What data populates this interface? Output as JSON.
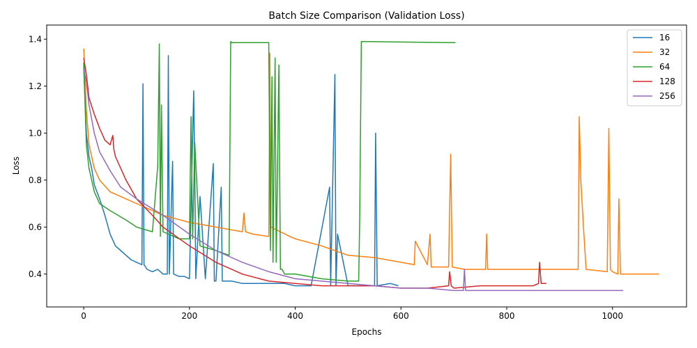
{
  "chart_data": {
    "type": "line",
    "title": "Batch Size Comparison (Validation Loss)",
    "xlabel": "Epochs",
    "ylabel": "Loss",
    "xlim": [
      -70,
      1140
    ],
    "ylim": [
      0.26,
      1.46
    ],
    "xticks": [
      0,
      200,
      400,
      600,
      800,
      1000
    ],
    "yticks": [
      0.4,
      0.6,
      0.8,
      1.0,
      1.2,
      1.4
    ],
    "xtick_labels": [
      "0",
      "200",
      "400",
      "600",
      "800",
      "1000"
    ],
    "ytick_labels": [
      "0.4",
      "0.6",
      "0.8",
      "1.0",
      "1.2",
      "1.4"
    ],
    "grid": false,
    "legend_position": "top-right",
    "series": [
      {
        "name": "16",
        "color": "#1f77b4",
        "x": [
          0,
          5,
          10,
          15,
          20,
          30,
          40,
          50,
          60,
          70,
          80,
          90,
          100,
          110,
          112,
          114,
          120,
          130,
          140,
          150,
          158,
          160,
          162,
          168,
          170,
          180,
          190,
          200,
          208,
          210,
          212,
          220,
          230,
          245,
          247,
          250,
          260,
          262,
          280,
          300,
          320,
          350,
          380,
          400,
          430,
          465,
          467,
          475,
          477,
          480,
          500,
          520,
          550,
          552,
          555,
          580,
          595
        ],
        "y": [
          1.28,
          1.0,
          0.9,
          0.85,
          0.78,
          0.72,
          0.65,
          0.57,
          0.52,
          0.5,
          0.48,
          0.46,
          0.45,
          0.44,
          1.21,
          0.44,
          0.42,
          0.41,
          0.42,
          0.4,
          0.4,
          1.33,
          0.4,
          0.88,
          0.4,
          0.39,
          0.39,
          0.38,
          1.18,
          0.84,
          0.38,
          0.73,
          0.38,
          0.87,
          0.37,
          0.37,
          0.77,
          0.37,
          0.37,
          0.36,
          0.36,
          0.36,
          0.36,
          0.35,
          0.35,
          0.77,
          0.35,
          1.25,
          0.35,
          0.57,
          0.35,
          0.35,
          0.35,
          1.0,
          0.35,
          0.36,
          0.35
        ]
      },
      {
        "name": "32",
        "color": "#ff7f0e",
        "x": [
          0,
          5,
          10,
          20,
          30,
          50,
          80,
          100,
          130,
          150,
          200,
          250,
          300,
          303,
          306,
          320,
          350,
          352,
          354,
          390,
          400,
          450,
          500,
          550,
          600,
          625,
          627,
          650,
          655,
          657,
          690,
          694,
          697,
          720,
          760,
          762,
          764,
          800,
          850,
          900,
          935,
          937,
          940,
          945,
          950,
          990,
          993,
          996,
          1000,
          1010,
          1012,
          1015,
          1050,
          1088
        ],
        "y": [
          1.36,
          1.1,
          0.95,
          0.85,
          0.8,
          0.75,
          0.72,
          0.7,
          0.67,
          0.65,
          0.62,
          0.6,
          0.58,
          0.66,
          0.58,
          0.57,
          0.56,
          1.34,
          0.6,
          0.56,
          0.55,
          0.52,
          0.48,
          0.47,
          0.45,
          0.44,
          0.54,
          0.44,
          0.57,
          0.43,
          0.43,
          0.91,
          0.43,
          0.42,
          0.42,
          0.57,
          0.42,
          0.42,
          0.42,
          0.42,
          0.42,
          1.07,
          0.8,
          0.6,
          0.42,
          0.41,
          1.02,
          0.42,
          0.41,
          0.4,
          0.72,
          0.4,
          0.4,
          0.4
        ]
      },
      {
        "name": "64",
        "color": "#2ca02c",
        "x": [
          0,
          5,
          10,
          20,
          30,
          50,
          80,
          100,
          130,
          140,
          143,
          145,
          147,
          150,
          180,
          200,
          203,
          206,
          210,
          220,
          250,
          275,
          278,
          280,
          350,
          353,
          356,
          358,
          362,
          364,
          366,
          369,
          372,
          375,
          380,
          400,
          450,
          500,
          520,
          522,
          525,
          700,
          703
        ],
        "y": [
          1.3,
          0.95,
          0.85,
          0.75,
          0.7,
          0.67,
          0.63,
          0.6,
          0.58,
          0.86,
          1.38,
          0.56,
          1.12,
          0.58,
          0.55,
          0.55,
          1.07,
          0.55,
          0.96,
          0.52,
          0.5,
          0.48,
          1.39,
          1.385,
          1.385,
          0.5,
          1.24,
          0.45,
          1.32,
          0.45,
          0.76,
          1.29,
          0.42,
          0.42,
          0.4,
          0.4,
          0.38,
          0.37,
          0.37,
          0.64,
          1.39,
          1.385,
          1.385
        ]
      },
      {
        "name": "128",
        "color": "#d62728",
        "x": [
          0,
          5,
          10,
          20,
          30,
          40,
          50,
          55,
          57,
          60,
          80,
          100,
          130,
          150,
          200,
          250,
          300,
          350,
          400,
          450,
          500,
          550,
          600,
          650,
          690,
          692,
          695,
          700,
          750,
          800,
          850,
          860,
          862,
          865,
          870,
          875
        ],
        "y": [
          1.32,
          1.25,
          1.15,
          1.08,
          1.02,
          0.97,
          0.95,
          0.99,
          0.93,
          0.9,
          0.8,
          0.72,
          0.65,
          0.6,
          0.52,
          0.45,
          0.4,
          0.37,
          0.36,
          0.35,
          0.35,
          0.35,
          0.34,
          0.34,
          0.35,
          0.41,
          0.35,
          0.34,
          0.35,
          0.35,
          0.35,
          0.36,
          0.45,
          0.36,
          0.36,
          0.36
        ]
      },
      {
        "name": "256",
        "color": "#9467bd",
        "x": [
          0,
          5,
          10,
          20,
          30,
          50,
          70,
          100,
          150,
          200,
          250,
          300,
          350,
          400,
          450,
          500,
          550,
          600,
          650,
          700,
          718,
          720,
          722,
          750,
          800,
          850,
          900,
          950,
          1000,
          1020
        ],
        "y": [
          1.27,
          1.22,
          1.12,
          1.0,
          0.92,
          0.84,
          0.77,
          0.72,
          0.65,
          0.57,
          0.5,
          0.45,
          0.41,
          0.38,
          0.37,
          0.36,
          0.35,
          0.34,
          0.34,
          0.33,
          0.33,
          0.42,
          0.33,
          0.33,
          0.33,
          0.33,
          0.33,
          0.33,
          0.33,
          0.33
        ]
      }
    ]
  }
}
